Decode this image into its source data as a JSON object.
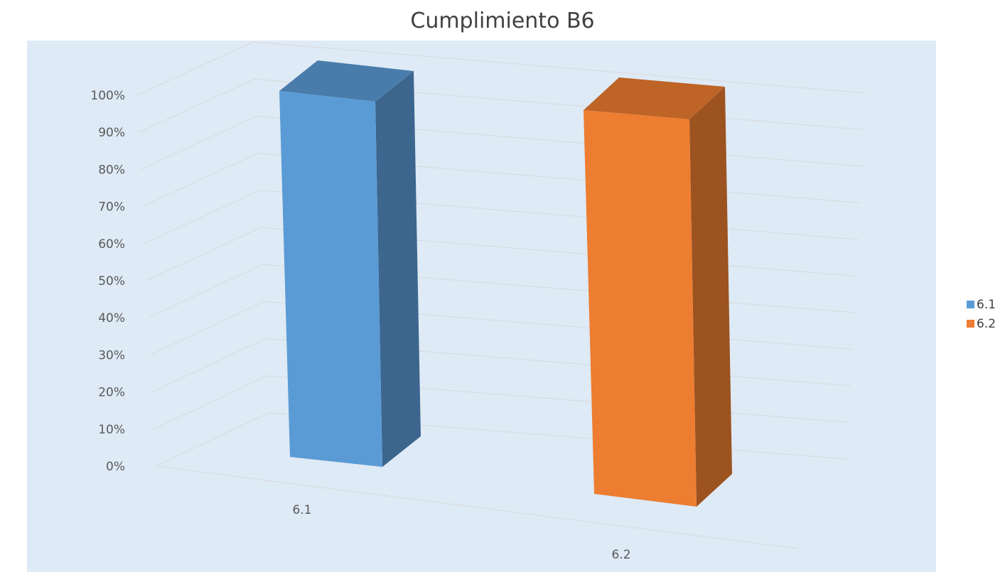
{
  "chart_data": {
    "type": "bar",
    "title": "Cumplimiento B6",
    "categories": [
      "6.1",
      "6.2"
    ],
    "series": [
      {
        "name": "6.1",
        "values": [
          1.0,
          null
        ],
        "color": "#5B9BD5"
      },
      {
        "name": "6.2",
        "values": [
          null,
          1.0
        ],
        "color": "#ED7D31"
      }
    ],
    "y_ticks": [
      "0%",
      "10%",
      "20%",
      "30%",
      "40%",
      "50%",
      "60%",
      "70%",
      "80%",
      "90%",
      "100%"
    ],
    "ylim": [
      0,
      1
    ],
    "grid": true,
    "legend_position": "right",
    "background_color": "#DEEAF6",
    "xlabel": "",
    "ylabel": ""
  }
}
